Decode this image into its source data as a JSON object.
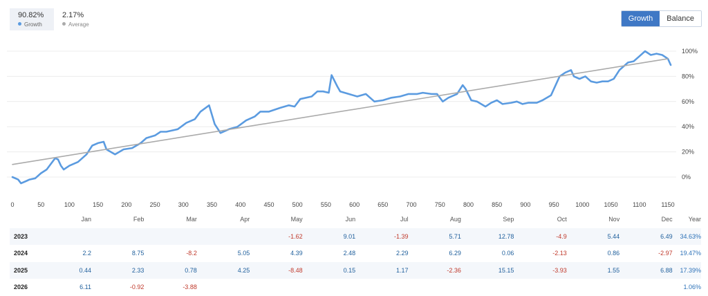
{
  "stats": {
    "growth": {
      "value": "90.82%",
      "label": "Growth",
      "color": "#5b9be0"
    },
    "average": {
      "value": "2.17%",
      "label": "Average",
      "color": "#aaaaaa"
    }
  },
  "toggle": {
    "growth_label": "Growth",
    "balance_label": "Balance",
    "active": "growth"
  },
  "chart_data": {
    "type": "line",
    "y_ticks": [
      "100%",
      "80%",
      "60%",
      "40%",
      "20%",
      "0%"
    ],
    "y_tick_values": [
      100,
      80,
      60,
      40,
      20,
      0
    ],
    "x_ticks": [
      "0",
      "50",
      "100",
      "150",
      "200",
      "250",
      "300",
      "350",
      "400",
      "450",
      "500",
      "550",
      "600",
      "650",
      "700",
      "750",
      "800",
      "850",
      "900",
      "950",
      "1000",
      "1050",
      "1100",
      "1150"
    ],
    "xlim": [
      0,
      1150
    ],
    "ylim": [
      -5,
      105
    ],
    "grid": true,
    "series": [
      {
        "label": "Growth",
        "color": "#5b9be0",
        "points": [
          [
            0,
            0
          ],
          [
            10,
            -2
          ],
          [
            15,
            -5
          ],
          [
            25,
            -3
          ],
          [
            30,
            -2
          ],
          [
            40,
            -1
          ],
          [
            50,
            3
          ],
          [
            60,
            6
          ],
          [
            65,
            9
          ],
          [
            75,
            15
          ],
          [
            80,
            14
          ],
          [
            85,
            9
          ],
          [
            90,
            6
          ],
          [
            100,
            9
          ],
          [
            115,
            12
          ],
          [
            130,
            18
          ],
          [
            140,
            25
          ],
          [
            150,
            27
          ],
          [
            160,
            28
          ],
          [
            165,
            22
          ],
          [
            180,
            18
          ],
          [
            195,
            22
          ],
          [
            210,
            23
          ],
          [
            225,
            27
          ],
          [
            235,
            31
          ],
          [
            250,
            33
          ],
          [
            260,
            36
          ],
          [
            270,
            36
          ],
          [
            290,
            38
          ],
          [
            305,
            43
          ],
          [
            320,
            46
          ],
          [
            330,
            52
          ],
          [
            345,
            57
          ],
          [
            355,
            42
          ],
          [
            365,
            35
          ],
          [
            380,
            38
          ],
          [
            395,
            40
          ],
          [
            410,
            45
          ],
          [
            425,
            48
          ],
          [
            435,
            52
          ],
          [
            450,
            52
          ],
          [
            470,
            55
          ],
          [
            485,
            57
          ],
          [
            495,
            56
          ],
          [
            505,
            62
          ],
          [
            525,
            64
          ],
          [
            535,
            68
          ],
          [
            545,
            68
          ],
          [
            555,
            67
          ],
          [
            560,
            81
          ],
          [
            570,
            72
          ],
          [
            575,
            68
          ],
          [
            590,
            66
          ],
          [
            605,
            64
          ],
          [
            620,
            66
          ],
          [
            635,
            60
          ],
          [
            650,
            61
          ],
          [
            665,
            63
          ],
          [
            680,
            64
          ],
          [
            695,
            66
          ],
          [
            710,
            66
          ],
          [
            720,
            67
          ],
          [
            735,
            66
          ],
          [
            745,
            66
          ],
          [
            755,
            60
          ],
          [
            765,
            63
          ],
          [
            780,
            66
          ],
          [
            790,
            73
          ],
          [
            795,
            70
          ],
          [
            805,
            61
          ],
          [
            815,
            60
          ],
          [
            830,
            56
          ],
          [
            840,
            59
          ],
          [
            850,
            61
          ],
          [
            860,
            58
          ],
          [
            875,
            59
          ],
          [
            885,
            60
          ],
          [
            895,
            58
          ],
          [
            905,
            59
          ],
          [
            920,
            59
          ],
          [
            930,
            61
          ],
          [
            945,
            65
          ],
          [
            960,
            80
          ],
          [
            970,
            83
          ],
          [
            980,
            85
          ],
          [
            985,
            80
          ],
          [
            995,
            78
          ],
          [
            1005,
            80
          ],
          [
            1015,
            76
          ],
          [
            1025,
            75
          ],
          [
            1035,
            76
          ],
          [
            1045,
            76
          ],
          [
            1055,
            78
          ],
          [
            1065,
            85
          ],
          [
            1080,
            91
          ],
          [
            1090,
            92
          ],
          [
            1100,
            96
          ],
          [
            1110,
            100
          ],
          [
            1120,
            97
          ],
          [
            1130,
            98
          ],
          [
            1140,
            97
          ],
          [
            1150,
            94
          ],
          [
            1155,
            89
          ]
        ]
      },
      {
        "label": "Average",
        "color": "#aaaaaa",
        "points": [
          [
            0,
            10
          ],
          [
            1150,
            94
          ]
        ]
      }
    ]
  },
  "returns": {
    "months": [
      "Jan",
      "Feb",
      "Mar",
      "Apr",
      "May",
      "Jun",
      "Jul",
      "Aug",
      "Sep",
      "Oct",
      "Nov",
      "Dec"
    ],
    "total_header": "Year",
    "rows": [
      {
        "year": "2023",
        "values": [
          "",
          "",
          "",
          "",
          "-1.62",
          "9.01",
          "-1.39",
          "5.71",
          "12.78",
          "-4.9",
          "5.44",
          "6.49"
        ],
        "total": "34.63%"
      },
      {
        "year": "2024",
        "values": [
          "2.2",
          "8.75",
          "-8.2",
          "5.05",
          "4.39",
          "2.48",
          "2.29",
          "6.29",
          "0.06",
          "-2.13",
          "0.86",
          "-2.97"
        ],
        "total": "19.47%"
      },
      {
        "year": "2025",
        "values": [
          "0.44",
          "2.33",
          "0.78",
          "4.25",
          "-8.48",
          "0.15",
          "1.17",
          "-2.36",
          "15.15",
          "-3.93",
          "1.55",
          "6.88"
        ],
        "total": "17.39%"
      },
      {
        "year": "2026",
        "values": [
          "6.11",
          "-0.92",
          "-3.88",
          "",
          "",
          "",
          "",
          "",
          "",
          "",
          "",
          ""
        ],
        "total": "1.06%"
      }
    ]
  }
}
